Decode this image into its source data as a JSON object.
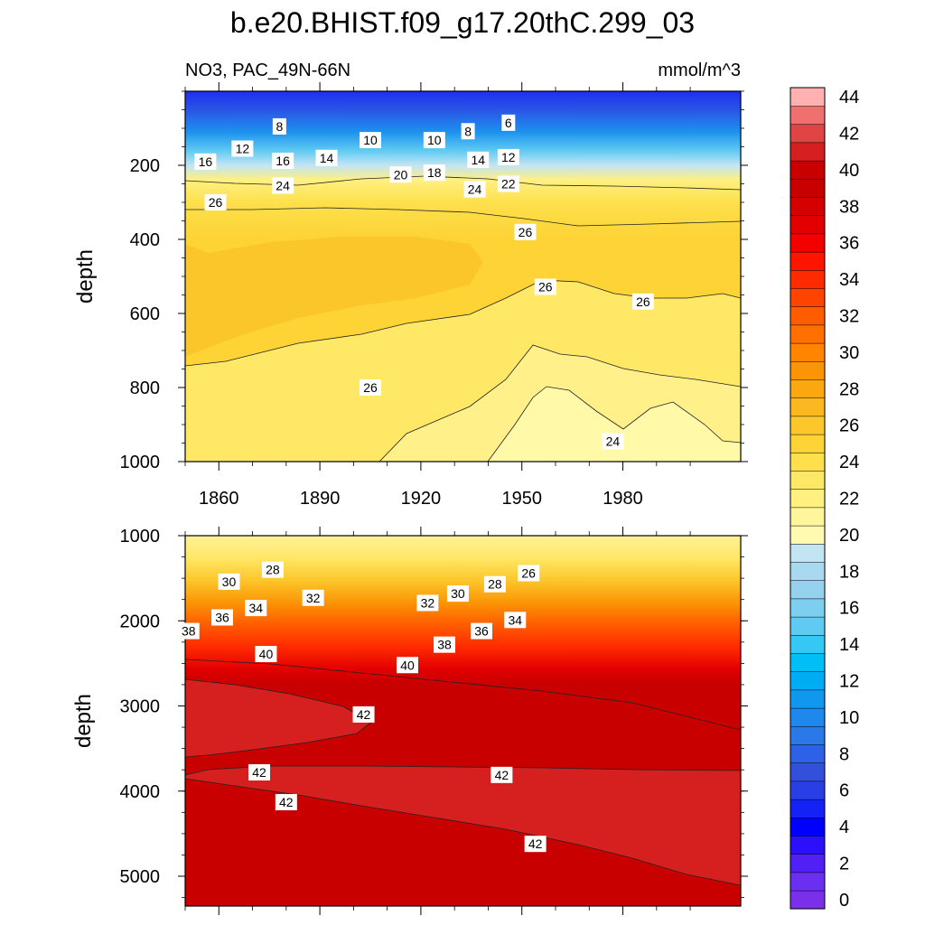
{
  "chart_data": {
    "type": "heatmap",
    "title": "b.e20.BHIST.f09_g17.20thC.299_03",
    "left_string": "NO3, PAC_49N-66N",
    "right_string": "mmol/m^3",
    "panels": [
      {
        "name": "upper",
        "ylabel": "depth",
        "xlim": [
          1850,
          2015
        ],
        "ylim": [
          0,
          1000
        ],
        "y_reversed": true,
        "xticks": [
          1860,
          1890,
          1920,
          1950,
          1980
        ],
        "yticks": [
          200,
          400,
          600,
          800,
          1000
        ],
        "contour_labels": [
          {
            "text": "8",
            "x": 1878,
            "y": 95
          },
          {
            "text": "6",
            "x": 1946,
            "y": 85
          },
          {
            "text": "10",
            "x": 1905,
            "y": 132
          },
          {
            "text": "10",
            "x": 1924,
            "y": 132
          },
          {
            "text": "8",
            "x": 1934,
            "y": 108
          },
          {
            "text": "12",
            "x": 1867,
            "y": 155
          },
          {
            "text": "16",
            "x": 1856,
            "y": 190
          },
          {
            "text": "16",
            "x": 1879,
            "y": 188
          },
          {
            "text": "14",
            "x": 1892,
            "y": 180
          },
          {
            "text": "14",
            "x": 1937,
            "y": 185
          },
          {
            "text": "12",
            "x": 1946,
            "y": 178
          },
          {
            "text": "20",
            "x": 1914,
            "y": 225
          },
          {
            "text": "18",
            "x": 1924,
            "y": 220
          },
          {
            "text": "24",
            "x": 1879,
            "y": 255
          },
          {
            "text": "24",
            "x": 1936,
            "y": 265
          },
          {
            "text": "22",
            "x": 1946,
            "y": 250
          },
          {
            "text": "26",
            "x": 1859,
            "y": 300
          },
          {
            "text": "26",
            "x": 1951,
            "y": 380
          },
          {
            "text": "26",
            "x": 1957,
            "y": 528
          },
          {
            "text": "26",
            "x": 1986,
            "y": 568
          },
          {
            "text": "26",
            "x": 1905,
            "y": 800
          },
          {
            "text": "24",
            "x": 1977,
            "y": 945
          }
        ]
      },
      {
        "name": "lower",
        "ylabel": "depth",
        "xlim": [
          1850,
          2015
        ],
        "ylim": [
          1000,
          5350
        ],
        "y_reversed": true,
        "yticks": [
          1000,
          2000,
          3000,
          4000,
          5000
        ],
        "contour_labels": [
          {
            "text": "26",
            "x": 1952,
            "y": 1440
          },
          {
            "text": "28",
            "x": 1876,
            "y": 1400
          },
          {
            "text": "28",
            "x": 1942,
            "y": 1570
          },
          {
            "text": "30",
            "x": 1863,
            "y": 1540
          },
          {
            "text": "30",
            "x": 1931,
            "y": 1680
          },
          {
            "text": "32",
            "x": 1888,
            "y": 1730
          },
          {
            "text": "32",
            "x": 1922,
            "y": 1790
          },
          {
            "text": "34",
            "x": 1871,
            "y": 1850
          },
          {
            "text": "34",
            "x": 1948,
            "y": 1990
          },
          {
            "text": "36",
            "x": 1861,
            "y": 1960
          },
          {
            "text": "36",
            "x": 1938,
            "y": 2120
          },
          {
            "text": "38",
            "x": 1851,
            "y": 2120
          },
          {
            "text": "38",
            "x": 1927,
            "y": 2280
          },
          {
            "text": "40",
            "x": 1874,
            "y": 2390
          },
          {
            "text": "40",
            "x": 1916,
            "y": 2520
          },
          {
            "text": "42",
            "x": 1903,
            "y": 3100
          },
          {
            "text": "42",
            "x": 1872,
            "y": 3780
          },
          {
            "text": "42",
            "x": 1944,
            "y": 3810
          },
          {
            "text": "42",
            "x": 1880,
            "y": 4130
          },
          {
            "text": "42",
            "x": 1954,
            "y": 4620
          }
        ]
      }
    ],
    "colorbar": {
      "min": 0,
      "max": 46,
      "step": 2,
      "tick_labels": [
        "0",
        "2",
        "4",
        "6",
        "8",
        "10",
        "12",
        "14",
        "16",
        "18",
        "20",
        "22",
        "24",
        "26",
        "28",
        "30",
        "32",
        "34",
        "36",
        "38",
        "40",
        "42",
        "44"
      ],
      "colors": [
        "#7a2fe8",
        "#6a2ff0",
        "#5020f6",
        "#2c10fb",
        "#0000ff",
        "#1422f5",
        "#2a3ee6",
        "#3350dc",
        "#2e62e6",
        "#2b78e8",
        "#1e88ec",
        "#1097f0",
        "#00adf5",
        "#00bff7",
        "#36c8f5",
        "#5fcaf2",
        "#7ccfef",
        "#94d2ed",
        "#a8d9ee",
        "#c3e4f3",
        "#fffab0",
        "#fff59a",
        "#fff080",
        "#ffe866",
        "#ffe04c",
        "#fdd335",
        "#fcc72b",
        "#fbb81f",
        "#fba710",
        "#fb9506",
        "#ff8400",
        "#ff7000",
        "#ff5c00",
        "#ff4400",
        "#ff2b00",
        "#ff1400",
        "#f50000",
        "#e30000",
        "#d50000",
        "#c80000",
        "#c90000",
        "#d62020",
        "#e04444",
        "#f07070",
        "#ffb0b0"
      ]
    }
  }
}
